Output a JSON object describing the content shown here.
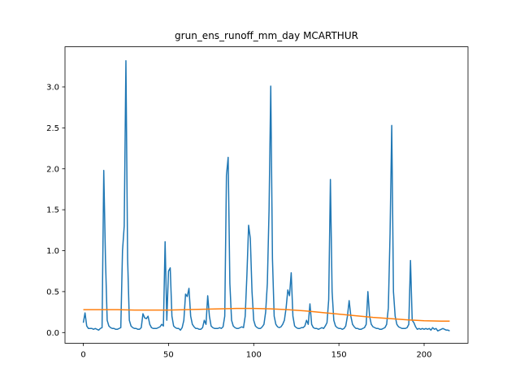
{
  "chart_data": {
    "type": "line",
    "title": "grun_ens_runoff_mm_day MCARTHUR",
    "xlim": [
      -10.75,
      225.75
    ],
    "xticks": [
      0,
      50,
      100,
      150,
      200
    ],
    "ylim": [
      -0.13,
      3.49
    ],
    "yticks": [
      {
        "value": 0,
        "label": "0.0"
      },
      0.5,
      {
        "value": 1,
        "label": "1.0"
      },
      1.5,
      {
        "value": 2,
        "label": "2.0"
      },
      2.5,
      {
        "value": 3,
        "label": "3.0"
      }
    ],
    "grid": false,
    "series": [
      {
        "color": "#1f77b4",
        "x": [
          0,
          1,
          2,
          3,
          4,
          5,
          6,
          7,
          8,
          9,
          10,
          11,
          12,
          13,
          14,
          15,
          16,
          17,
          18,
          19,
          20,
          21,
          22,
          23,
          24,
          25,
          26,
          27,
          28,
          29,
          30,
          31,
          32,
          33,
          34,
          35,
          36,
          37,
          38,
          39,
          40,
          41,
          42,
          43,
          44,
          45,
          46,
          47,
          48,
          49,
          50,
          51,
          52,
          53,
          54,
          55,
          56,
          57,
          58,
          59,
          60,
          61,
          62,
          63,
          64,
          65,
          66,
          67,
          68,
          69,
          70,
          71,
          72,
          73,
          74,
          75,
          76,
          77,
          78,
          79,
          80,
          81,
          82,
          83,
          84,
          85,
          86,
          87,
          88,
          89,
          90,
          91,
          92,
          93,
          94,
          95,
          96,
          97,
          98,
          99,
          100,
          101,
          102,
          103,
          104,
          105,
          106,
          107,
          108,
          109,
          110,
          111,
          112,
          113,
          114,
          115,
          116,
          117,
          118,
          119,
          120,
          121,
          122,
          123,
          124,
          125,
          126,
          127,
          128,
          129,
          130,
          131,
          132,
          133,
          134,
          135,
          136,
          137,
          138,
          139,
          140,
          141,
          142,
          143,
          144,
          145,
          146,
          147,
          148,
          149,
          150,
          151,
          152,
          153,
          154,
          155,
          156,
          157,
          158,
          159,
          160,
          161,
          162,
          163,
          164,
          165,
          166,
          167,
          168,
          169,
          170,
          171,
          172,
          173,
          174,
          175,
          176,
          177,
          178,
          179,
          180,
          181,
          182,
          183,
          184,
          185,
          186,
          187,
          188,
          189,
          190,
          191,
          192,
          193,
          194,
          195,
          196,
          197,
          198,
          199,
          200,
          201,
          202,
          203,
          204,
          205,
          206,
          207,
          208,
          209,
          210,
          211,
          212,
          213,
          214,
          215
        ],
        "values": [
          0.12,
          0.24,
          0.08,
          0.05,
          0.05,
          0.05,
          0.04,
          0.05,
          0.04,
          0.03,
          0.05,
          0.06,
          1.98,
          0.9,
          0.15,
          0.08,
          0.06,
          0.05,
          0.05,
          0.04,
          0.04,
          0.05,
          0.06,
          1.0,
          1.3,
          3.32,
          0.9,
          0.15,
          0.08,
          0.06,
          0.05,
          0.05,
          0.04,
          0.04,
          0.06,
          0.23,
          0.18,
          0.17,
          0.2,
          0.1,
          0.06,
          0.05,
          0.05,
          0.05,
          0.06,
          0.07,
          0.1,
          0.08,
          1.11,
          0.15,
          0.75,
          0.79,
          0.2,
          0.08,
          0.06,
          0.05,
          0.05,
          0.03,
          0.06,
          0.15,
          0.47,
          0.44,
          0.54,
          0.2,
          0.1,
          0.07,
          0.05,
          0.05,
          0.04,
          0.04,
          0.06,
          0.15,
          0.1,
          0.45,
          0.2,
          0.08,
          0.06,
          0.05,
          0.05,
          0.05,
          0.06,
          0.05,
          0.07,
          0.2,
          1.92,
          2.14,
          0.6,
          0.15,
          0.08,
          0.06,
          0.05,
          0.05,
          0.06,
          0.07,
          0.06,
          0.2,
          0.7,
          1.31,
          1.15,
          0.5,
          0.15,
          0.08,
          0.06,
          0.05,
          0.05,
          0.07,
          0.1,
          0.25,
          0.6,
          1.5,
          3.01,
          0.9,
          0.2,
          0.1,
          0.07,
          0.06,
          0.07,
          0.1,
          0.15,
          0.3,
          0.52,
          0.45,
          0.73,
          0.2,
          0.08,
          0.06,
          0.05,
          0.05,
          0.06,
          0.06,
          0.08,
          0.15,
          0.1,
          0.35,
          0.1,
          0.06,
          0.05,
          0.05,
          0.04,
          0.05,
          0.06,
          0.05,
          0.08,
          0.12,
          0.4,
          1.87,
          0.5,
          0.15,
          0.08,
          0.06,
          0.05,
          0.05,
          0.04,
          0.05,
          0.08,
          0.2,
          0.39,
          0.2,
          0.1,
          0.07,
          0.05,
          0.05,
          0.04,
          0.04,
          0.05,
          0.06,
          0.1,
          0.5,
          0.2,
          0.1,
          0.07,
          0.06,
          0.05,
          0.05,
          0.04,
          0.04,
          0.05,
          0.06,
          0.1,
          0.3,
          1.2,
          2.53,
          0.5,
          0.2,
          0.1,
          0.07,
          0.06,
          0.05,
          0.05,
          0.05,
          0.06,
          0.1,
          0.88,
          0.15,
          0.12,
          0.07,
          0.04,
          0.05,
          0.04,
          0.05,
          0.04,
          0.05,
          0.04,
          0.05,
          0.03,
          0.06,
          0.04,
          0.05,
          0.02,
          0.03,
          0.04,
          0.05,
          0.04,
          0.03,
          0.03,
          0.02
        ]
      },
      {
        "color": "#ff7f0e",
        "x": [
          0,
          10,
          20,
          30,
          40,
          50,
          60,
          70,
          80,
          90,
          100,
          110,
          120,
          130,
          140,
          150,
          160,
          170,
          180,
          190,
          200,
          210,
          215
        ],
        "values": [
          0.28,
          0.28,
          0.28,
          0.275,
          0.275,
          0.275,
          0.28,
          0.285,
          0.29,
          0.295,
          0.295,
          0.29,
          0.28,
          0.265,
          0.245,
          0.225,
          0.205,
          0.185,
          0.17,
          0.155,
          0.145,
          0.14,
          0.14
        ]
      }
    ]
  }
}
